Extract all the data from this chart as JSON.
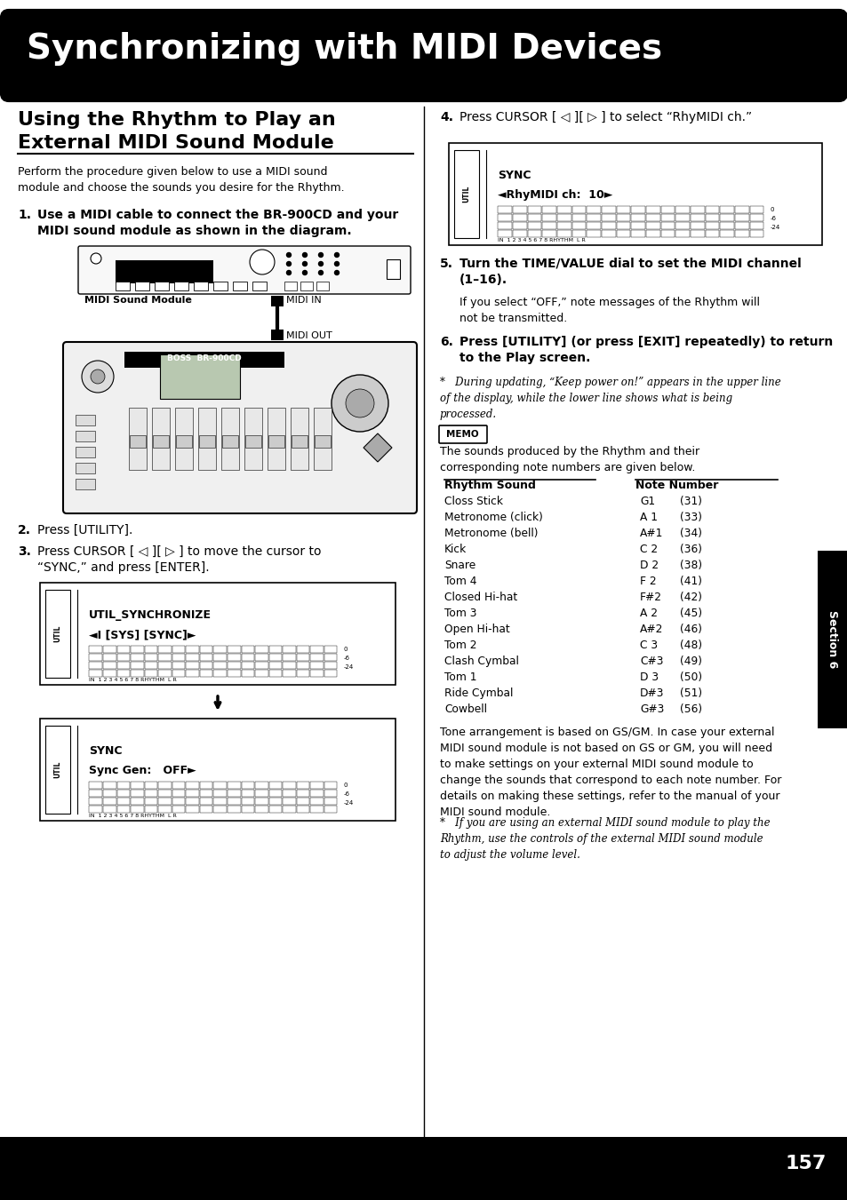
{
  "title": "Synchronizing with MIDI Devices",
  "bg_color": "#ffffff",
  "page_number": "157",
  "intro_text": "Perform the procedure given below to use a MIDI sound\nmodule and choose the sounds you desire for the Rhythm.",
  "step2_text": "Press [UTILITY].",
  "step3_text": "Press CURSOR [ ◁ ][ ▷ ] to move the cursor to\n“SYNC,” and press [ENTER].",
  "step4_text": "Press CURSOR [ ◁ ][ ▷ ] to select “RhyMIDI ch.”",
  "step5_bold": "Turn the TIME/VALUE dial to set the MIDI channel\n(1–16).",
  "step5_text": "If you select “OFF,” note messages of the Rhythm will\nnot be transmitted.",
  "step6_bold": "Press [UTILITY] (or press [EXIT] repeatedly) to return\nto the Play screen.",
  "asterisk_text": "*   During updating, “Keep power on!” appears in the upper line\nof the display, while the lower line shows what is being\nprocessed.",
  "memo_text": "The sounds produced by the Rhythm and their\ncorresponding note numbers are given below.",
  "table_headers": [
    "Rhythm Sound",
    "Note Number"
  ],
  "table_rows": [
    [
      "Closs Stick",
      "G1",
      "(31)"
    ],
    [
      "Metronome (click)",
      "A 1",
      "(33)"
    ],
    [
      "Metronome (bell)",
      "A#1",
      "(34)"
    ],
    [
      "Kick",
      "C 2",
      "(36)"
    ],
    [
      "Snare",
      "D 2",
      "(38)"
    ],
    [
      "Tom 4",
      "F 2",
      "(41)"
    ],
    [
      "Closed Hi-hat",
      "F#2",
      "(42)"
    ],
    [
      "Tom 3",
      "A 2",
      "(45)"
    ],
    [
      "Open Hi-hat",
      "A#2",
      "(46)"
    ],
    [
      "Tom 2",
      "C 3",
      "(48)"
    ],
    [
      "Clash Cymbal",
      "C#3",
      "(49)"
    ],
    [
      "Tom 1",
      "D 3",
      "(50)"
    ],
    [
      "Ride Cymbal",
      "D#3",
      "(51)"
    ],
    [
      "Cowbell",
      "G#3",
      "(56)"
    ]
  ],
  "tone_text": "Tone arrangement is based on GS/GM. In case your external\nMIDI sound module is not based on GS or GM, you will need\nto make settings on your external MIDI sound module to\nchange the sounds that correspond to each note number. For\ndetails on making these settings, refer to the manual of your\nMIDI sound module.",
  "asterisk2_text": "*   If you are using an external MIDI sound module to play the\nRhythm, use the controls of the external MIDI sound module\nto adjust the volume level.",
  "section_label": "Section 6"
}
